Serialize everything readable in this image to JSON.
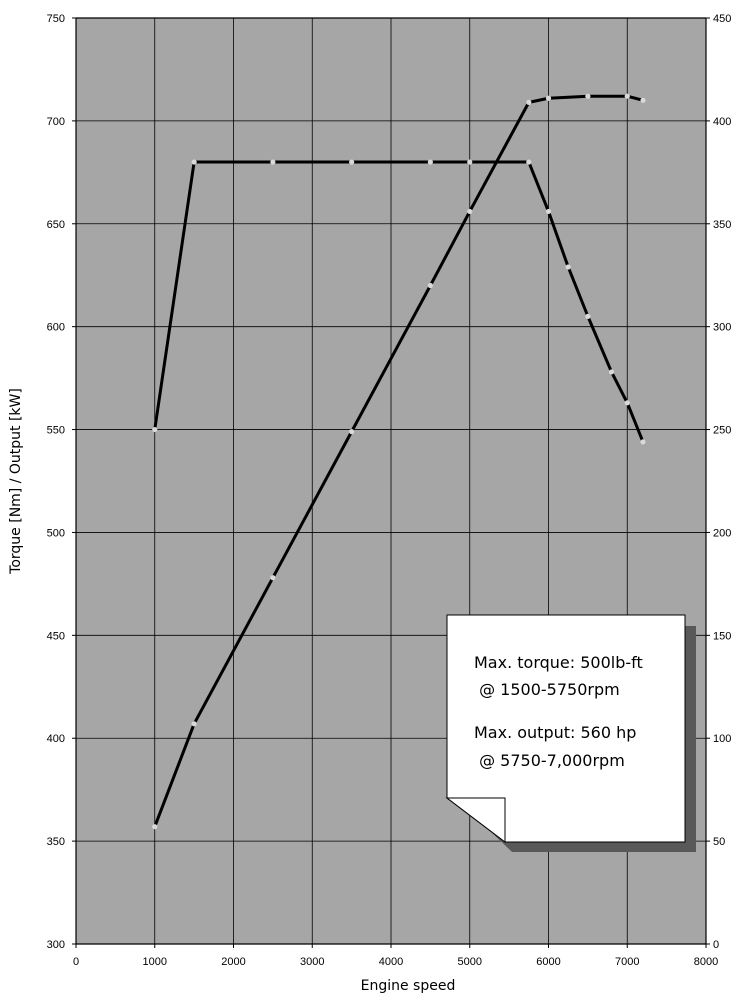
{
  "chart_data": {
    "type": "line",
    "xlabel": "Engine speed",
    "ylabel": "Torque [Nm] / Output [kW]",
    "xlim": [
      0,
      8000
    ],
    "ylim": [
      300,
      750
    ],
    "y2lim": [
      0,
      450
    ],
    "xticks": [
      "0",
      "1000",
      "2000",
      "3000",
      "4000",
      "5000",
      "6000",
      "7000",
      "8000"
    ],
    "yticks": [
      "300",
      "350",
      "400",
      "450",
      "500",
      "550",
      "600",
      "650",
      "700",
      "750"
    ],
    "y2ticks": [
      "0",
      "50",
      "100",
      "150",
      "200",
      "250",
      "300",
      "350",
      "400",
      "450"
    ],
    "grid": true,
    "background": "#a6a6a6",
    "line_color": "#000000",
    "marker_color": "#d9d9d9",
    "series": [
      {
        "axis": "left",
        "x": [
          1000,
          1500,
          2500,
          3500,
          4500,
          5000,
          5750,
          6000,
          6250,
          6500,
          6800,
          7000,
          7200
        ],
        "y": [
          550,
          680,
          680,
          680,
          680,
          680,
          680,
          656,
          629,
          605,
          578,
          563,
          544
        ]
      },
      {
        "axis": "right",
        "x": [
          1000,
          1500,
          2500,
          3500,
          4500,
          5000,
          5750,
          6000,
          6500,
          7000,
          7200
        ],
        "y": [
          57,
          107,
          178,
          249,
          320,
          356,
          409,
          411,
          412,
          412,
          410
        ]
      }
    ],
    "annotation": {
      "lines": [
        "Max. torque: 500lb-ft",
        " @ 1500-5750rpm",
        "Max. output: 560 hp",
        " @ 5750-7,000rpm"
      ]
    }
  }
}
